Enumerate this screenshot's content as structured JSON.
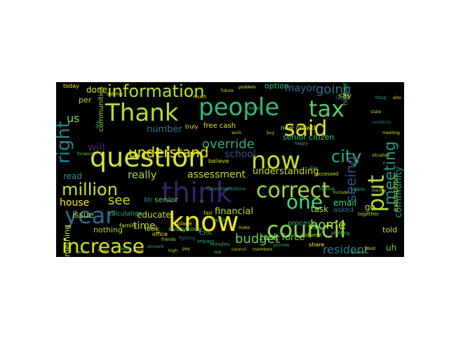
{
  "cloud": {
    "background": "#000000",
    "words": [
      {
        "text": "think",
        "color": "#3b1f6e"
      },
      {
        "text": "question",
        "color": "#d4e33a"
      },
      {
        "text": "know",
        "color": "#f1e51d"
      },
      {
        "text": "people",
        "color": "#35b779"
      },
      {
        "text": "tax",
        "color": "#5cc863"
      },
      {
        "text": "now",
        "color": "#c2df23"
      },
      {
        "text": "Thank",
        "color": "#b5de2b"
      },
      {
        "text": "council",
        "color": "#8fd744"
      },
      {
        "text": "increase",
        "color": "#d8e219"
      },
      {
        "text": "correct",
        "color": "#a2da37"
      },
      {
        "text": "said",
        "color": "#e2e418"
      },
      {
        "text": "information",
        "color": "#b8de29"
      },
      {
        "text": "put",
        "color": "#addc30"
      },
      {
        "text": "year",
        "color": "#31688e"
      },
      {
        "text": "million",
        "color": "#c8e020"
      },
      {
        "text": "one",
        "color": "#3ddc82"
      },
      {
        "text": "right",
        "color": "#26828e"
      },
      {
        "text": "meeting",
        "color": "#1f988b"
      },
      {
        "text": "city",
        "color": "#2db27d"
      },
      {
        "text": "budget",
        "color": "#6ece58"
      },
      {
        "text": "override",
        "color": "#2ab07f"
      },
      {
        "text": "understand",
        "color": "#e5e419"
      },
      {
        "text": "home",
        "color": "#b3dc2b"
      },
      {
        "text": "seeing",
        "color": "#3e4a89"
      },
      {
        "text": "going",
        "color": "#2c728e"
      },
      {
        "text": "see",
        "color": "#d0e11c"
      },
      {
        "text": "school",
        "color": "#3b528b"
      },
      {
        "text": "community",
        "color": "#1f9e89"
      },
      {
        "text": "resident",
        "color": "#26828e"
      },
      {
        "text": "mayor",
        "color": "#2d708e"
      },
      {
        "text": "really",
        "color": "#a5db36"
      },
      {
        "text": "assessment",
        "color": "#c0df25"
      },
      {
        "text": "understanding",
        "color": "#cde11d"
      },
      {
        "text": "financial",
        "color": "#b4de2c"
      },
      {
        "text": "task force",
        "color": "#75d054"
      },
      {
        "text": "task",
        "color": "#b2dd2d"
      },
      {
        "text": "number",
        "color": "#2a788e"
      },
      {
        "text": "will",
        "color": "#482475"
      },
      {
        "text": "us",
        "color": "#84d44b"
      },
      {
        "text": "house",
        "color": "#fde725"
      },
      {
        "text": "time",
        "color": "#b5de2b"
      },
      {
        "text": "educate",
        "color": "#c2df23"
      },
      {
        "text": "senior citizen",
        "color": "#4ac16d"
      },
      {
        "text": "new growth",
        "color": "#c8e020"
      },
      {
        "text": "free cash",
        "color": "#e1e418"
      },
      {
        "text": "process",
        "color": "#35b779"
      },
      {
        "text": "asked",
        "color": "#2c728e"
      },
      {
        "text": "email",
        "color": "#3ddc82"
      },
      {
        "text": "go",
        "color": "#bddf26"
      },
      {
        "text": "told",
        "color": "#c5e021"
      },
      {
        "text": "uh",
        "color": "#6ccd5a"
      },
      {
        "text": "communities",
        "color": "#9bd93c"
      },
      {
        "text": "done",
        "color": "#d8e219"
      },
      {
        "text": "per",
        "color": "#c2df23"
      },
      {
        "text": "read",
        "color": "#21918c"
      },
      {
        "text": "issue",
        "color": "#9fda3a"
      },
      {
        "text": "nothing",
        "color": "#a0da39"
      },
      {
        "text": "something",
        "color": "#c5e021"
      },
      {
        "text": "senior",
        "color": "#5ec962"
      },
      {
        "text": "Mr",
        "color": "#2a788e"
      },
      {
        "text": "option",
        "color": "#35b779"
      },
      {
        "text": "higher",
        "color": "#4ac16d"
      },
      {
        "text": "say",
        "color": "#c2df23"
      },
      {
        "text": "exemption",
        "color": "#b2dd2d"
      },
      {
        "text": "today",
        "color": "#fde725"
      },
      {
        "text": "calculation",
        "color": "#2ab07f"
      },
      {
        "text": "family",
        "color": "#d2e21b"
      },
      {
        "text": "look",
        "color": "#cde11d"
      },
      {
        "text": "everybody",
        "color": "#5ec962"
      },
      {
        "text": "CPA",
        "color": "#1fa187"
      },
      {
        "text": "fair",
        "color": "#b8de29"
      },
      {
        "text": "tactic",
        "color": "#2db27d"
      },
      {
        "text": "office",
        "color": "#fde725"
      },
      {
        "text": "place",
        "color": "#d8e219"
      },
      {
        "text": "impact",
        "color": "#2ab07f"
      },
      {
        "text": "truly",
        "color": "#fde725"
      },
      {
        "text": "believe",
        "color": "#d8e219"
      },
      {
        "text": "minutes",
        "color": "#35b779"
      },
      {
        "text": "share",
        "color": "#fde725"
      },
      {
        "text": "shame",
        "color": "#c2df23"
      },
      {
        "text": "back",
        "color": "#3e4a89"
      },
      {
        "text": "accessed",
        "color": "#d8e219"
      },
      {
        "text": "public",
        "color": "#2db27d"
      },
      {
        "text": "money",
        "color": "#c2df23"
      },
      {
        "text": "together",
        "color": "#b8de29"
      },
      {
        "text": "easy",
        "color": "#35b779"
      },
      {
        "text": "anything",
        "color": "#5ec962"
      },
      {
        "text": "fighting",
        "color": "#2a788e"
      },
      {
        "text": "friends",
        "color": "#b5de2b"
      },
      {
        "text": "much",
        "color": "#d8e219"
      },
      {
        "text": "asking",
        "color": "#fde725"
      },
      {
        "text": "line",
        "color": "#35b779"
      },
      {
        "text": "forward",
        "color": "#5ec962"
      },
      {
        "text": "ill",
        "color": "#2ab07f"
      },
      {
        "text": "make",
        "color": "#c2df23"
      },
      {
        "text": "situation",
        "color": "#b8de29"
      },
      {
        "text": "problem",
        "color": "#fde725"
      },
      {
        "text": "future",
        "color": "#d8e219"
      },
      {
        "text": "letter",
        "color": "#4ac16d"
      },
      {
        "text": "buy",
        "color": "#c2df23"
      },
      {
        "text": "happy",
        "color": "#2db27d"
      },
      {
        "text": "stay",
        "color": "#35b779"
      },
      {
        "text": "looking",
        "color": "#5ec962"
      },
      {
        "text": "include",
        "color": "#b5de2b"
      },
      {
        "text": "meeting",
        "color": "#d8e219"
      },
      {
        "text": "residents",
        "color": "#2a788e"
      },
      {
        "text": "state",
        "color": "#c2df23"
      },
      {
        "text": "thing",
        "color": "#35b779"
      },
      {
        "text": "point",
        "color": "#fde725"
      },
      {
        "text": "answer",
        "color": "#4ac16d"
      },
      {
        "text": "provide",
        "color": "#2db27d"
      },
      {
        "text": "members",
        "color": "#b8de29"
      },
      {
        "text": "council",
        "color": "#c2df23"
      },
      {
        "text": "low",
        "color": "#5ec962"
      },
      {
        "text": "pay",
        "color": "#d8e219"
      },
      {
        "text": "high",
        "color": "#b5de2b"
      },
      {
        "text": "amount",
        "color": "#2ab07f"
      },
      {
        "text": "want",
        "color": "#fde725"
      },
      {
        "text": "need",
        "color": "#35b779"
      },
      {
        "text": "town",
        "color": "#c2df23"
      },
      {
        "text": "well",
        "color": "#4ac16d"
      },
      {
        "text": "also",
        "color": "#d8e219"
      },
      {
        "text": "work",
        "color": "#b5de2b"
      },
      {
        "text": "Councilresolutions",
        "color": "#2db27d"
      }
    ]
  }
}
